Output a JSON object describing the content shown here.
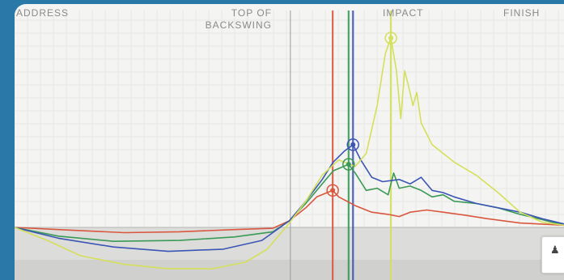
{
  "phases": {
    "address": "ADDRESS",
    "top_line1": "TOP OF",
    "top_line2": "BACKSWING",
    "impact": "IMPACT",
    "finish": "FINISH"
  },
  "golfer_button": {
    "icon": "golfer-icon",
    "label": ""
  },
  "colors": {
    "background_frame": "#2a78a8",
    "panel": "#f4f4f2",
    "red": "#d9573f",
    "green": "#3b9a55",
    "blue": "#3c55b5",
    "yellow": "#d4e05a"
  },
  "chart_data": {
    "type": "line",
    "title": "",
    "xlabel": "",
    "ylabel": "",
    "x_phases": [
      "ADDRESS",
      "TOP OF BACKSWING",
      "IMPACT",
      "FINISH"
    ],
    "xlim": [
      0,
      100
    ],
    "ylim": [
      -1.0,
      4.8
    ],
    "grid": true,
    "baseline_y": 0,
    "phase_boundary_x": 50.2,
    "series": [
      {
        "color": "red",
        "peak": {
          "x": 57.9,
          "y": 0.85,
          "marked": true
        },
        "vertical_marker_x": 57.9,
        "points": [
          [
            0,
            0
          ],
          [
            8,
            -0.05
          ],
          [
            20,
            -0.12
          ],
          [
            30,
            -0.1
          ],
          [
            40,
            -0.05
          ],
          [
            47,
            -0.02
          ],
          [
            50,
            0.15
          ],
          [
            53,
            0.45
          ],
          [
            55,
            0.7
          ],
          [
            57.9,
            0.85
          ],
          [
            59,
            0.7
          ],
          [
            62,
            0.5
          ],
          [
            65,
            0.35
          ],
          [
            68,
            0.3
          ],
          [
            70,
            0.25
          ],
          [
            72,
            0.35
          ],
          [
            75,
            0.4
          ],
          [
            78,
            0.35
          ],
          [
            82,
            0.28
          ],
          [
            86,
            0.2
          ],
          [
            92,
            0.1
          ],
          [
            100,
            0.05
          ]
        ]
      },
      {
        "color": "green",
        "peak": {
          "x": 60.8,
          "y": 1.45,
          "marked": true
        },
        "vertical_marker_x": 60.8,
        "points": [
          [
            0,
            0
          ],
          [
            8,
            -0.2
          ],
          [
            18,
            -0.32
          ],
          [
            30,
            -0.3
          ],
          [
            40,
            -0.22
          ],
          [
            47,
            -0.1
          ],
          [
            50,
            0.15
          ],
          [
            53,
            0.55
          ],
          [
            56,
            1.0
          ],
          [
            58,
            1.3
          ],
          [
            60.8,
            1.45
          ],
          [
            62,
            1.25
          ],
          [
            64,
            0.85
          ],
          [
            66,
            0.9
          ],
          [
            68,
            0.75
          ],
          [
            69,
            1.25
          ],
          [
            70,
            0.9
          ],
          [
            72,
            0.95
          ],
          [
            74,
            0.85
          ],
          [
            76,
            0.7
          ],
          [
            78,
            0.75
          ],
          [
            80,
            0.6
          ],
          [
            84,
            0.55
          ],
          [
            88,
            0.45
          ],
          [
            92,
            0.3
          ],
          [
            96,
            0.18
          ],
          [
            100,
            0.05
          ]
        ]
      },
      {
        "color": "blue",
        "peak": {
          "x": 61.6,
          "y": 1.9,
          "marked": true
        },
        "vertical_marker_x": 61.6,
        "points": [
          [
            0,
            0
          ],
          [
            8,
            -0.25
          ],
          [
            18,
            -0.45
          ],
          [
            28,
            -0.55
          ],
          [
            38,
            -0.5
          ],
          [
            45,
            -0.3
          ],
          [
            50,
            0.15
          ],
          [
            53,
            0.6
          ],
          [
            56,
            1.1
          ],
          [
            58,
            1.5
          ],
          [
            60,
            1.75
          ],
          [
            61.6,
            1.9
          ],
          [
            63,
            1.55
          ],
          [
            65,
            1.15
          ],
          [
            67,
            1.05
          ],
          [
            70,
            1.1
          ],
          [
            72,
            1.0
          ],
          [
            74,
            1.15
          ],
          [
            76,
            0.85
          ],
          [
            78,
            0.8
          ],
          [
            80,
            0.7
          ],
          [
            84,
            0.55
          ],
          [
            88,
            0.45
          ],
          [
            92,
            0.35
          ],
          [
            96,
            0.2
          ],
          [
            100,
            0.08
          ]
        ]
      },
      {
        "color": "yellow",
        "peak": {
          "x": 68.5,
          "y": 4.35,
          "marked": true
        },
        "vertical_marker_x": 68.5,
        "points": [
          [
            0,
            0
          ],
          [
            6,
            -0.3
          ],
          [
            12,
            -0.65
          ],
          [
            20,
            -0.85
          ],
          [
            28,
            -0.95
          ],
          [
            36,
            -0.95
          ],
          [
            42,
            -0.8
          ],
          [
            46,
            -0.5
          ],
          [
            50,
            0.1
          ],
          [
            53,
            0.6
          ],
          [
            56,
            1.2
          ],
          [
            59,
            1.55
          ],
          [
            62,
            1.4
          ],
          [
            64,
            1.7
          ],
          [
            66,
            2.8
          ],
          [
            67.5,
            4.0
          ],
          [
            68.5,
            4.35
          ],
          [
            69.5,
            3.6
          ],
          [
            70.3,
            2.5
          ],
          [
            71,
            3.6
          ],
          [
            71.8,
            3.2
          ],
          [
            72.5,
            2.8
          ],
          [
            73.2,
            3.1
          ],
          [
            74,
            2.4
          ],
          [
            76,
            1.9
          ],
          [
            80,
            1.5
          ],
          [
            84,
            1.2
          ],
          [
            88,
            0.8
          ],
          [
            92,
            0.35
          ],
          [
            96,
            0.12
          ],
          [
            100,
            0.05
          ]
        ]
      }
    ]
  }
}
